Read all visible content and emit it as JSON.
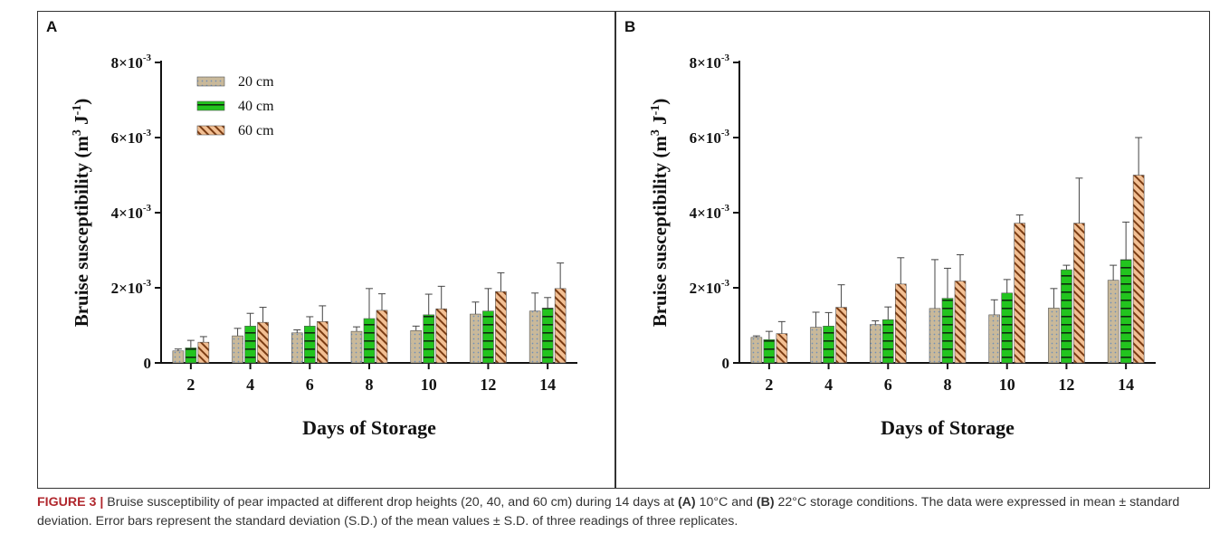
{
  "panels": [
    {
      "letter": "A",
      "chart_data": {
        "type": "bar",
        "title": "",
        "xlabel": "Days of Storage",
        "ylabel_main": "Bruise susceptibility (m",
        "ylabel_sup1": "3",
        "ylabel_mid": " J",
        "ylabel_sup2": "-1",
        "ylabel_end": ")",
        "categories": [
          "2",
          "4",
          "6",
          "8",
          "10",
          "12",
          "14"
        ],
        "ylim": [
          0,
          0.008
        ],
        "yticks": [
          {
            "value": 0,
            "base": "0",
            "exp": ""
          },
          {
            "value": 0.002,
            "base": "2×10",
            "exp": "-3"
          },
          {
            "value": 0.004,
            "base": "4×10",
            "exp": "-3"
          },
          {
            "value": 0.006,
            "base": "6×10",
            "exp": "-3"
          },
          {
            "value": 0.008,
            "base": "8×10",
            "exp": "-3"
          }
        ],
        "legend_position": "top-left",
        "series": [
          {
            "name": "20 cm",
            "values": [
              0.00032,
              0.00072,
              0.0008,
              0.00084,
              0.00086,
              0.0013,
              0.00138
            ],
            "errors": [
              5e-05,
              0.0002,
              8e-05,
              0.00012,
              0.00012,
              0.00032,
              0.00048
            ]
          },
          {
            "name": "40 cm",
            "values": [
              0.0004,
              0.00098,
              0.00098,
              0.00118,
              0.00128,
              0.00138,
              0.00146
            ],
            "errors": [
              0.0002,
              0.00034,
              0.00025,
              0.0008,
              0.00055,
              0.0006,
              0.00028
            ]
          },
          {
            "name": "60 cm",
            "values": [
              0.00055,
              0.00108,
              0.0011,
              0.0014,
              0.00144,
              0.0019,
              0.00198
            ],
            "errors": [
              0.00015,
              0.0004,
              0.00042,
              0.00044,
              0.0006,
              0.0005,
              0.00068
            ]
          }
        ]
      }
    },
    {
      "letter": "B",
      "chart_data": {
        "type": "bar",
        "title": "",
        "xlabel": "Days of Storage",
        "ylabel_main": "Bruise susceptibility (m",
        "ylabel_sup1": "3",
        "ylabel_mid": " J",
        "ylabel_sup2": "-1",
        "ylabel_end": ")",
        "categories": [
          "2",
          "4",
          "6",
          "8",
          "10",
          "12",
          "14"
        ],
        "ylim": [
          0,
          0.008
        ],
        "yticks": [
          {
            "value": 0,
            "base": "0",
            "exp": ""
          },
          {
            "value": 0.002,
            "base": "2×10",
            "exp": "-3"
          },
          {
            "value": 0.004,
            "base": "4×10",
            "exp": "-3"
          },
          {
            "value": 0.006,
            "base": "6×10",
            "exp": "-3"
          },
          {
            "value": 0.008,
            "base": "8×10",
            "exp": "-3"
          }
        ],
        "legend_position": "none",
        "series": [
          {
            "name": "20 cm",
            "values": [
              0.00068,
              0.00095,
              0.00102,
              0.00145,
              0.00128,
              0.00146,
              0.0022
            ],
            "errors": [
              4e-05,
              0.0004,
              0.0001,
              0.0013,
              0.0004,
              0.00052,
              0.0004
            ]
          },
          {
            "name": "40 cm",
            "values": [
              0.00062,
              0.00098,
              0.00115,
              0.00172,
              0.00186,
              0.00248,
              0.00275
            ],
            "errors": [
              0.00022,
              0.00036,
              0.00034,
              0.0008,
              0.00036,
              0.00012,
              0.001
            ]
          },
          {
            "name": "60 cm",
            "values": [
              0.00078,
              0.00148,
              0.0021,
              0.00218,
              0.00372,
              0.00372,
              0.005
            ],
            "errors": [
              0.00032,
              0.0006,
              0.0007,
              0.0007,
              0.00022,
              0.0012,
              0.001
            ]
          }
        ]
      }
    }
  ],
  "caption": {
    "label": "FIGURE 3 |",
    "seg1": " Bruise susceptibility of pear impacted at different drop heights (20, 40, and 60 cm) during 14 days at ",
    "a_ref": "(A)",
    "seg2": " 10°C and ",
    "b_ref": "(B)",
    "seg3": " 22°C storage conditions. The data were expressed in mean ± standard deviation. Error bars represent the standard deviation (S.D.) of the mean values ± S.D. of three readings of three replicates."
  },
  "colors": {
    "series_20": "#c9b99a",
    "series_20_dots": "#6f8fb8",
    "series_40": "#22c41e",
    "series_40_lines": "#0e2a0e",
    "series_60": "#f2bf93",
    "series_60_lines": "#7a3b12",
    "axis": "#111111",
    "caption_label": "#b0272d"
  }
}
